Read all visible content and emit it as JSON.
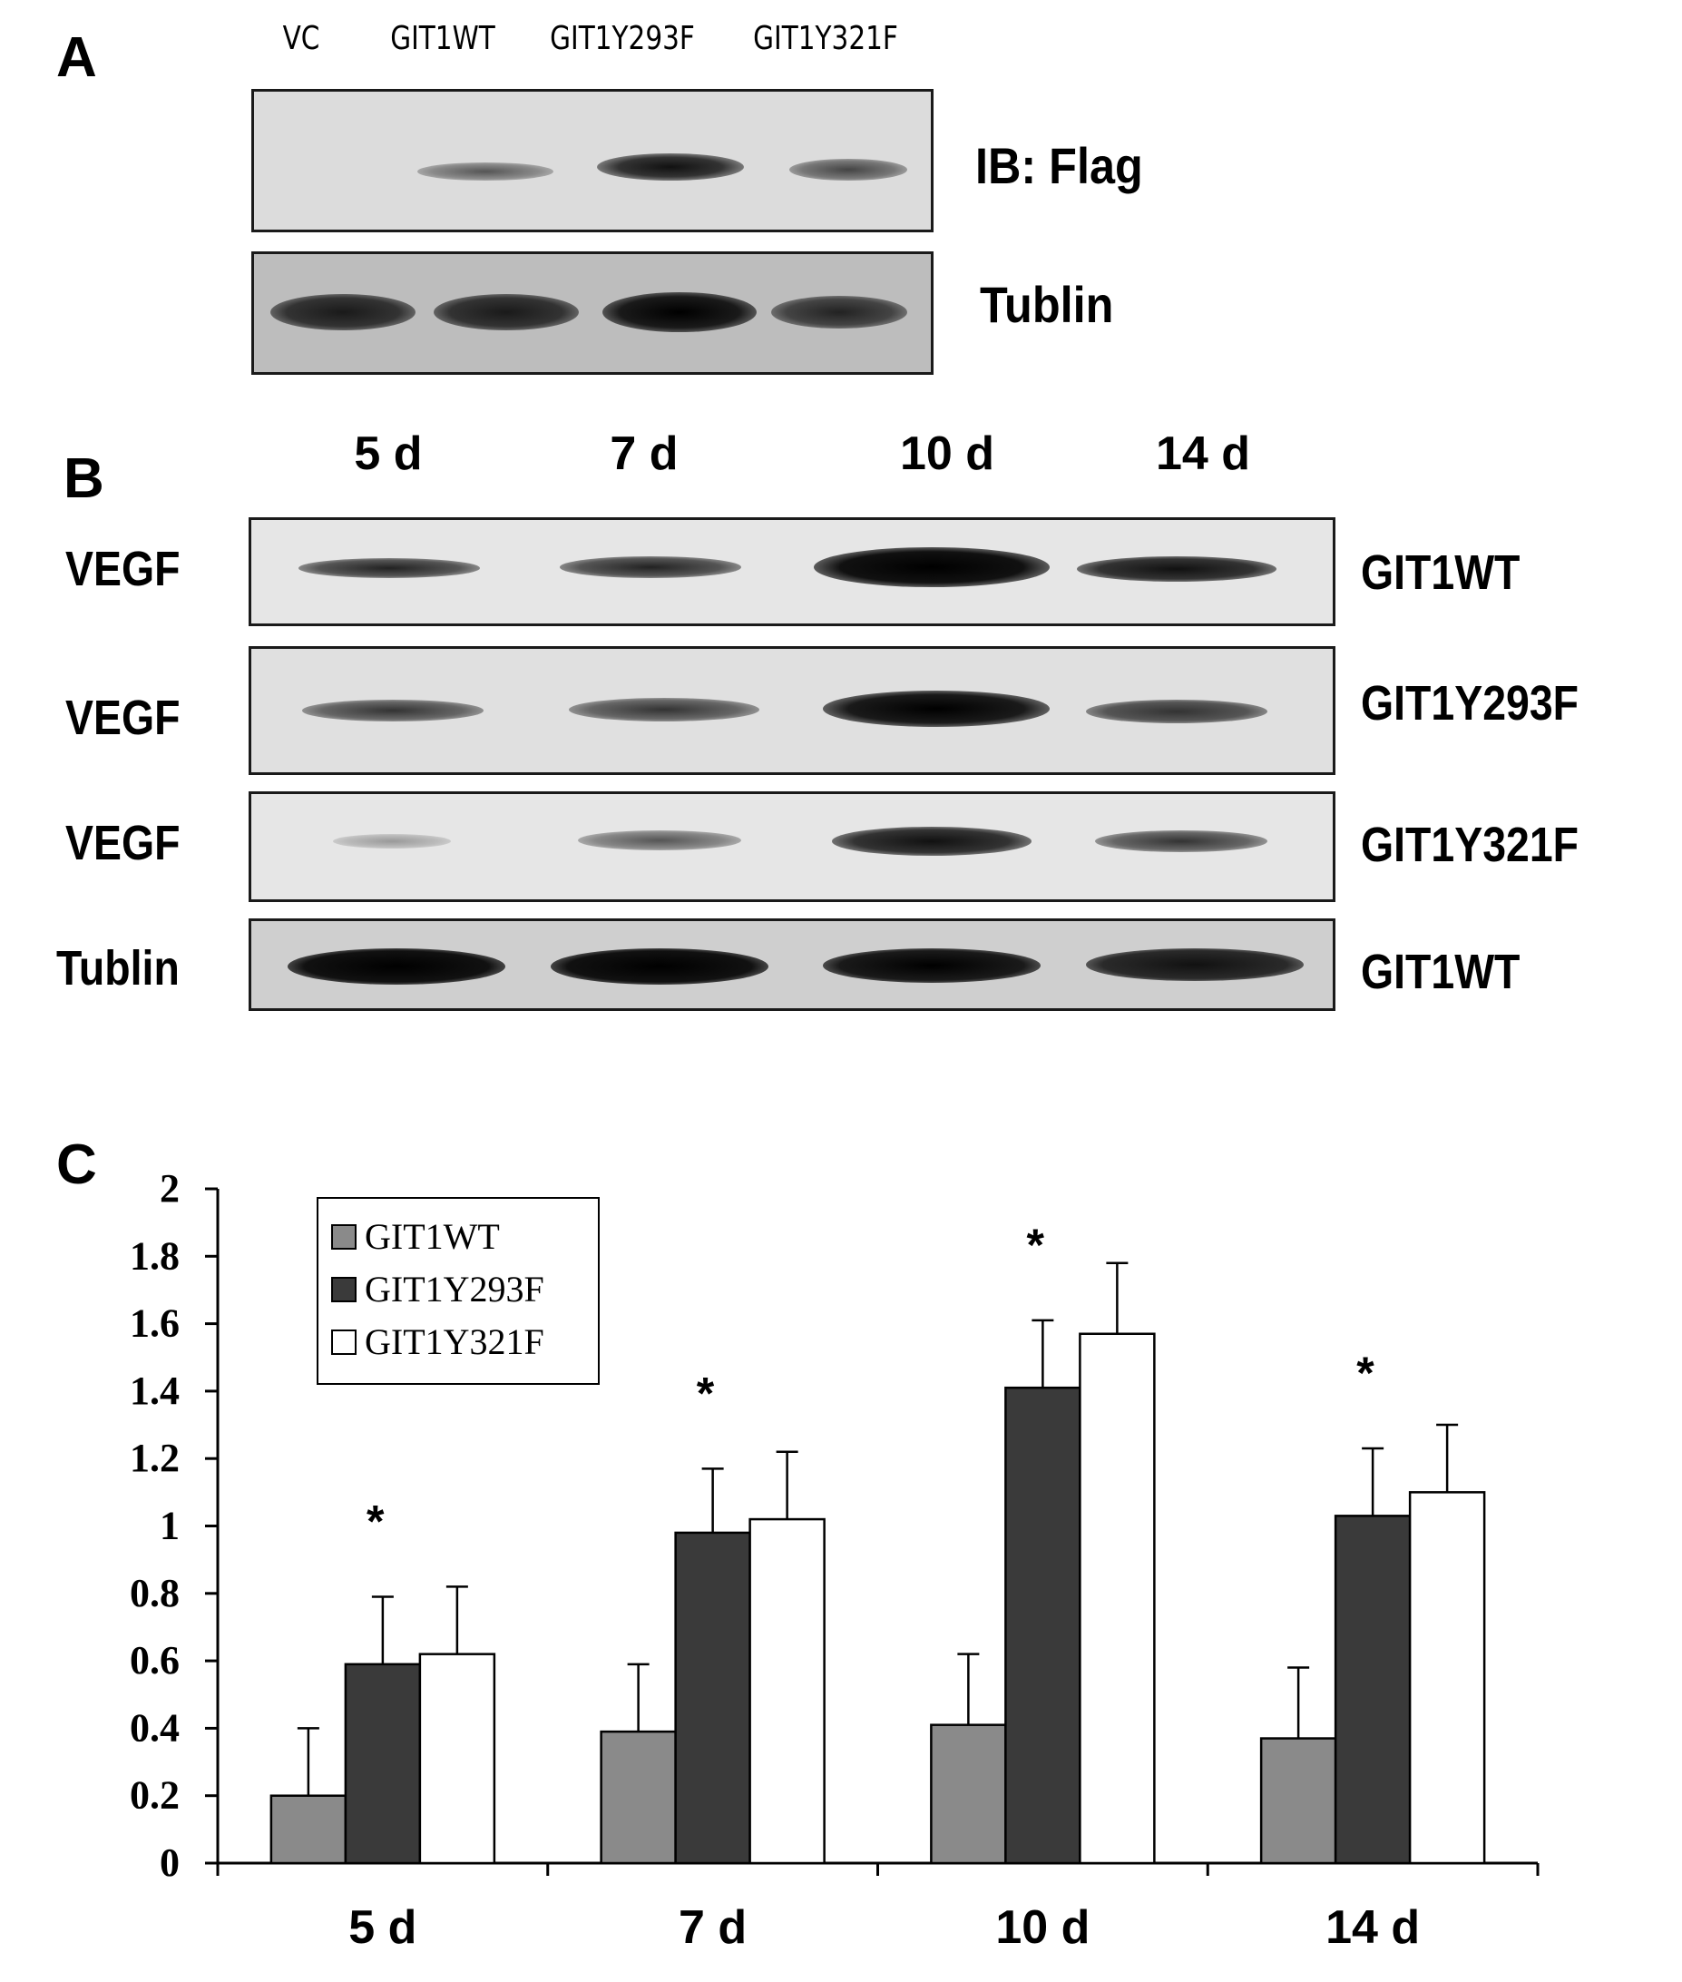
{
  "panels": {
    "a": {
      "letter": "A",
      "lanes": [
        "VC",
        "GIT1WT",
        "GIT1Y293F",
        "GIT1Y321F"
      ],
      "rows": [
        "IB: Flag",
        "Tublin"
      ]
    },
    "b": {
      "letter": "B",
      "times": [
        "5 d",
        "7 d",
        "10 d",
        "14 d"
      ],
      "left_labels": [
        "VEGF",
        "VEGF",
        "VEGF",
        "Tublin"
      ],
      "right_labels": [
        "GIT1WT",
        "GIT1Y293F",
        "GIT1Y321F",
        "GIT1WT"
      ]
    },
    "c": {
      "letter": "C"
    }
  },
  "chart_data": {
    "type": "bar",
    "categories": [
      "5 d",
      "7 d",
      "10 d",
      "14 d"
    ],
    "series": [
      {
        "name": "GIT1WT",
        "color": "#8a8a8a",
        "values": [
          0.2,
          0.39,
          0.41,
          0.37
        ],
        "errors": [
          0.2,
          0.2,
          0.21,
          0.21
        ]
      },
      {
        "name": "GIT1Y293F",
        "color": "#3a3a3a",
        "values": [
          0.59,
          0.98,
          1.41,
          1.03
        ],
        "errors": [
          0.2,
          0.19,
          0.2,
          0.2
        ]
      },
      {
        "name": "GIT1Y321F",
        "color": "#ffffff",
        "values": [
          0.62,
          1.02,
          1.57,
          1.1
        ],
        "errors": [
          0.2,
          0.2,
          0.21,
          0.2
        ]
      }
    ],
    "ylim": [
      0,
      2
    ],
    "yticks": [
      "0",
      "0.2",
      "0.4",
      "0.6",
      "0.8",
      "1",
      "1.2",
      "1.4",
      "1.6",
      "1.8",
      "2"
    ],
    "significance": [
      "*",
      "*",
      "*",
      "*"
    ],
    "legend": "top-left",
    "grid": false
  }
}
